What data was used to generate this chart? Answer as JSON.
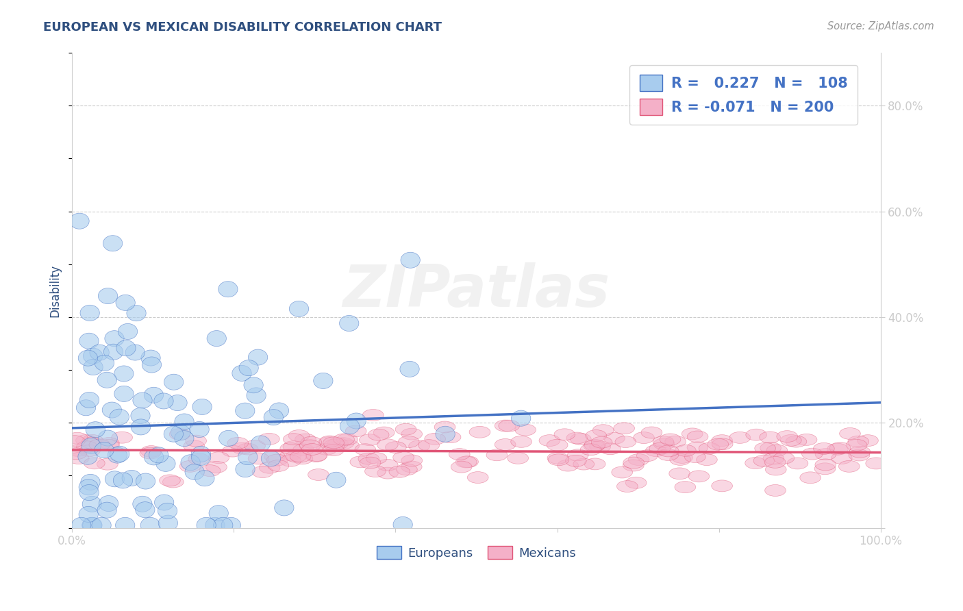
{
  "title": "EUROPEAN VS MEXICAN DISABILITY CORRELATION CHART",
  "source": "Source: ZipAtlas.com",
  "ylabel": "Disability",
  "r_european": 0.227,
  "n_european": 108,
  "r_mexican": -0.071,
  "n_mexican": 200,
  "color_european": "#A8CCEE",
  "color_mexican": "#F4B0C8",
  "line_color_european": "#4472C4",
  "line_color_mexican": "#E05577",
  "title_color": "#2F4F7F",
  "source_color": "#999999",
  "axis_label_color": "#2F4F7F",
  "tick_color": "#4472C4",
  "background_color": "#FFFFFF",
  "grid_color": "#CCCCCC",
  "legend_text_color": "#4472C4",
  "ylim": [
    0.0,
    0.9
  ],
  "xlim": [
    0.0,
    1.0
  ],
  "yticks": [
    0.0,
    0.2,
    0.4,
    0.6,
    0.8
  ],
  "ytick_labels": [
    "",
    "20.0%",
    "40.0%",
    "60.0%",
    "80.0%"
  ],
  "xticks": [
    0.0,
    0.2,
    0.4,
    0.6,
    0.8,
    1.0
  ],
  "xtick_labels": [
    "0.0%",
    "",
    "",
    "",
    "",
    "100.0%"
  ],
  "watermark": "ZIPatlas"
}
